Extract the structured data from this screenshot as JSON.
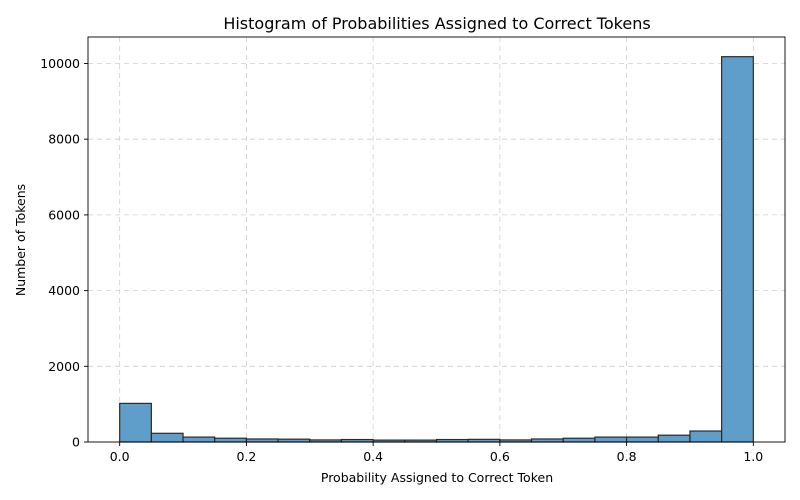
{
  "chart_data": {
    "type": "bar",
    "title": "Histogram of Probabilities Assigned to Correct Tokens",
    "xlabel": "Probability Assigned to Correct Token",
    "ylabel": "Number of Tokens",
    "bin_edges": [
      0.0,
      0.05,
      0.1,
      0.15,
      0.2,
      0.25,
      0.3,
      0.35,
      0.4,
      0.45,
      0.5,
      0.55,
      0.6,
      0.65,
      0.7,
      0.75,
      0.8,
      0.85,
      0.9,
      0.95,
      1.0
    ],
    "values": [
      1020,
      230,
      130,
      100,
      80,
      75,
      55,
      65,
      50,
      50,
      65,
      70,
      55,
      80,
      100,
      130,
      130,
      180,
      290,
      10180
    ],
    "xlim": [
      -0.05,
      1.05
    ],
    "ylim": [
      0,
      10700
    ],
    "xticks": [
      0.0,
      0.2,
      0.4,
      0.6,
      0.8,
      1.0
    ],
    "xtick_labels": [
      "0.0",
      "0.2",
      "0.4",
      "0.6",
      "0.8",
      "1.0"
    ],
    "yticks": [
      0,
      2000,
      4000,
      6000,
      8000,
      10000
    ],
    "ytick_labels": [
      "0",
      "2000",
      "4000",
      "6000",
      "8000",
      "10000"
    ],
    "grid": true,
    "colors": {
      "bar": "#5f9ecb",
      "edge": "#2b2b2b"
    }
  }
}
